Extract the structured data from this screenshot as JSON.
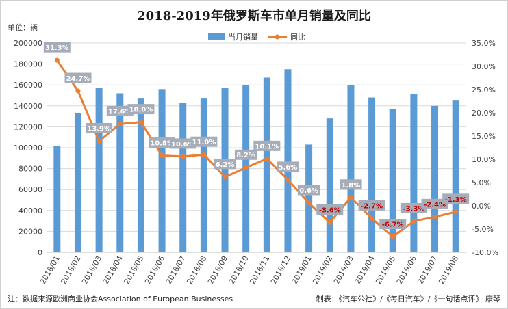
{
  "title": "2018-2019年俄罗斯车市单月销量及同比",
  "unit_label": "单位：辆",
  "source_note": "注：数据来源欧洲商业协会Association of European Businesses",
  "credit": "制表：《汽车公社》/《每日汽车》/《一句话点评》 康琴",
  "chart_data": {
    "type": "bar",
    "categories": [
      "2018/01",
      "2018/02",
      "2018/03",
      "2018/04",
      "2018/05",
      "2018/06",
      "2018/07",
      "2018/08",
      "2018/09",
      "2018/10",
      "2018/11",
      "2018/12",
      "2019/01",
      "2019/02",
      "2019/03",
      "2019/04",
      "2019/05",
      "2019/06",
      "2019/07",
      "2019/08"
    ],
    "series": [
      {
        "name": "当月销量",
        "type": "bar",
        "axis": "left",
        "color": "#5b9bd5",
        "values": [
          102000,
          133000,
          157000,
          152000,
          147000,
          156000,
          143000,
          147000,
          157000,
          160000,
          167000,
          175000,
          103000,
          128000,
          160000,
          148000,
          137000,
          151000,
          140000,
          145000
        ]
      },
      {
        "name": "同比",
        "type": "line",
        "axis": "right",
        "color": "#ed7d31",
        "values": [
          31.3,
          24.7,
          13.9,
          17.6,
          18.0,
          10.8,
          10.6,
          11.0,
          6.2,
          8.2,
          10.1,
          5.6,
          0.6,
          -3.6,
          1.8,
          -2.7,
          -6.7,
          -3.3,
          -2.4,
          -1.3
        ],
        "labels": [
          "31.3%",
          "24.7%",
          "13.9%",
          "17.6%",
          "18.0%",
          "10.8%",
          "10.6%",
          "11.0%",
          "6.2%",
          "8.2%",
          "10.1%",
          "5.6%",
          "0.6%",
          "-3.6%",
          "1.8%",
          "-2.7%",
          "-6.7%",
          "-3.3%",
          "-2.4%",
          "-1.3%"
        ]
      }
    ],
    "y_left": {
      "min": 0,
      "max": 200000,
      "step": 20000,
      "ticks": [
        "0",
        "20000",
        "40000",
        "60000",
        "80000",
        "100000",
        "120000",
        "140000",
        "160000",
        "180000",
        "200000"
      ]
    },
    "y_right": {
      "min": -10,
      "max": 35,
      "step": 5,
      "ticks": [
        "-10.0%",
        "-5.0%",
        "0.0%",
        "5.0%",
        "10.0%",
        "15.0%",
        "20.0%",
        "25.0%",
        "30.0%",
        "35.0%"
      ]
    },
    "legend_position": "top-center",
    "grid": true,
    "label_box_color": "#a6adb8",
    "negative_label_color": "#c00000"
  }
}
